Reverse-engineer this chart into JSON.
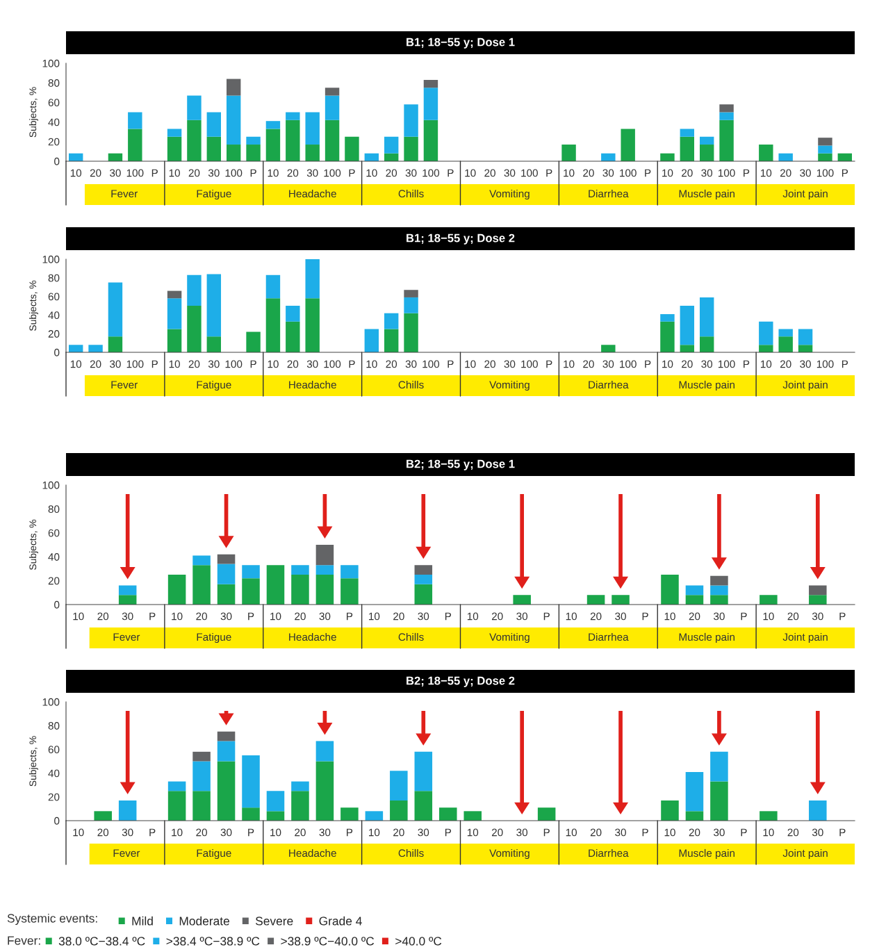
{
  "chart_data": [
    {
      "type": "bar",
      "stacked": true,
      "title": "B1; 18−55 y; Dose 1",
      "ylabel": "Subjects, %",
      "ylim": [
        0,
        100
      ],
      "yticks": [
        0,
        20,
        40,
        60,
        80,
        100
      ],
      "grid": false,
      "categories": [
        "10",
        "20",
        "30",
        "100",
        "P",
        "10",
        "20",
        "30",
        "100",
        "P",
        "10",
        "20",
        "30",
        "100",
        "P",
        "10",
        "20",
        "30",
        "100",
        "P",
        "10",
        "20",
        "30",
        "100",
        "P",
        "10",
        "20",
        "30",
        "100",
        "P",
        "10",
        "20",
        "30",
        "100",
        "P",
        "10",
        "20",
        "30",
        "100",
        "P"
      ],
      "annotations": [
        "Fever",
        "Fatigue",
        "Headache",
        "Chills",
        "Vomiting",
        "Diarrhea",
        "Muscle pain",
        "Joint pain"
      ],
      "series": [
        {
          "color": "#1aa64a",
          "values": [
            0,
            0,
            8,
            33,
            0,
            25,
            42,
            25,
            17,
            17,
            33,
            42,
            17,
            42,
            25,
            0,
            8,
            25,
            42,
            0,
            0,
            0,
            0,
            0,
            0,
            17,
            0,
            0,
            33,
            0,
            8,
            25,
            17,
            42,
            0,
            17,
            0,
            0,
            8,
            8
          ]
        },
        {
          "color": "#1eaee8",
          "values": [
            8,
            0,
            0,
            17,
            0,
            8,
            25,
            25,
            50,
            8,
            8,
            8,
            33,
            25,
            0,
            8,
            17,
            33,
            33,
            0,
            0,
            0,
            0,
            0,
            0,
            0,
            0,
            8,
            0,
            0,
            0,
            8,
            8,
            8,
            0,
            0,
            8,
            0,
            8,
            0
          ]
        },
        {
          "color": "#636466",
          "values": [
            0,
            0,
            0,
            0,
            0,
            0,
            0,
            0,
            17,
            0,
            0,
            0,
            0,
            8,
            0,
            0,
            0,
            0,
            8,
            0,
            0,
            0,
            0,
            0,
            0,
            0,
            0,
            0,
            0,
            0,
            0,
            0,
            0,
            8,
            0,
            0,
            0,
            0,
            8,
            0
          ]
        },
        {
          "color": "#e0201b",
          "values": [
            0,
            0,
            0,
            0,
            0,
            0,
            0,
            0,
            0,
            0,
            0,
            0,
            0,
            0,
            0,
            0,
            0,
            0,
            0,
            0,
            0,
            0,
            0,
            0,
            0,
            0,
            0,
            0,
            0,
            0,
            0,
            0,
            0,
            0,
            0,
            0,
            0,
            0,
            0,
            0
          ]
        }
      ]
    },
    {
      "type": "bar",
      "stacked": true,
      "title": "B1; 18−55 y; Dose 2",
      "ylabel": "Subjects, %",
      "ylim": [
        0,
        100
      ],
      "yticks": [
        0,
        20,
        40,
        60,
        80,
        100
      ],
      "grid": false,
      "categories": [
        "10",
        "20",
        "30",
        "100",
        "P",
        "10",
        "20",
        "30",
        "100",
        "P",
        "10",
        "20",
        "30",
        "100",
        "P",
        "10",
        "20",
        "30",
        "100",
        "P",
        "10",
        "20",
        "30",
        "100",
        "P",
        "10",
        "20",
        "30",
        "100",
        "P",
        "10",
        "20",
        "30",
        "100",
        "P",
        "10",
        "20",
        "30",
        "100",
        "P"
      ],
      "annotations": [
        "Fever",
        "Fatigue",
        "Headache",
        "Chills",
        "Vomiting",
        "Diarrhea",
        "Muscle pain",
        "Joint pain"
      ],
      "series": [
        {
          "color": "#1aa64a",
          "values": [
            0,
            0,
            17,
            0,
            0,
            25,
            50,
            17,
            0,
            22,
            58,
            33,
            58,
            0,
            0,
            0,
            25,
            42,
            0,
            0,
            0,
            0,
            0,
            0,
            0,
            0,
            0,
            8,
            0,
            0,
            33,
            8,
            17,
            0,
            0,
            8,
            17,
            8,
            0,
            0
          ]
        },
        {
          "color": "#1eaee8",
          "values": [
            8,
            8,
            58,
            0,
            0,
            33,
            33,
            67,
            0,
            0,
            25,
            17,
            42,
            0,
            0,
            25,
            17,
            17,
            0,
            0,
            0,
            0,
            0,
            0,
            0,
            0,
            0,
            0,
            0,
            0,
            8,
            42,
            42,
            0,
            0,
            25,
            8,
            17,
            0,
            0
          ]
        },
        {
          "color": "#636466",
          "values": [
            0,
            0,
            0,
            0,
            0,
            8,
            0,
            0,
            0,
            0,
            0,
            0,
            0,
            0,
            0,
            0,
            0,
            8,
            0,
            0,
            0,
            0,
            0,
            0,
            0,
            0,
            0,
            0,
            0,
            0,
            0,
            0,
            0,
            0,
            0,
            0,
            0,
            0,
            0,
            0
          ]
        },
        {
          "color": "#e0201b",
          "values": [
            0,
            0,
            0,
            0,
            0,
            0,
            0,
            0,
            0,
            0,
            0,
            0,
            0,
            0,
            0,
            0,
            0,
            0,
            0,
            0,
            0,
            0,
            0,
            0,
            0,
            0,
            0,
            0,
            0,
            0,
            0,
            0,
            0,
            0,
            0,
            0,
            0,
            0,
            0,
            0
          ]
        }
      ]
    },
    {
      "type": "bar",
      "stacked": true,
      "title": "B2; 18−55 y; Dose 1",
      "ylabel": "Subjects, %",
      "ylim": [
        0,
        100
      ],
      "yticks": [
        0,
        20,
        40,
        60,
        80,
        100
      ],
      "grid": false,
      "categories": [
        "10",
        "20",
        "30",
        "P",
        "10",
        "20",
        "30",
        "P",
        "10",
        "20",
        "30",
        "P",
        "10",
        "20",
        "30",
        "P",
        "10",
        "20",
        "30",
        "P",
        "10",
        "20",
        "30",
        "P",
        "10",
        "20",
        "30",
        "P",
        "10",
        "20",
        "30",
        "P"
      ],
      "annotations": [
        "Fever",
        "Fatigue",
        "Headache",
        "Chills",
        "Vomiting",
        "Diarrhea",
        "Muscle pain",
        "Joint pain"
      ],
      "series": [
        {
          "color": "#1aa64a",
          "values": [
            0,
            0,
            8,
            0,
            25,
            33,
            17,
            22,
            33,
            25,
            25,
            22,
            0,
            0,
            17,
            0,
            0,
            0,
            8,
            0,
            0,
            8,
            8,
            0,
            25,
            8,
            8,
            0,
            8,
            0,
            8,
            0
          ]
        },
        {
          "color": "#1eaee8",
          "values": [
            0,
            0,
            8,
            0,
            0,
            8,
            17,
            11,
            0,
            8,
            8,
            11,
            0,
            0,
            8,
            0,
            0,
            0,
            0,
            0,
            0,
            0,
            0,
            0,
            0,
            8,
            8,
            0,
            0,
            0,
            0,
            0
          ]
        },
        {
          "color": "#636466",
          "values": [
            0,
            0,
            0,
            0,
            0,
            0,
            8,
            0,
            0,
            0,
            17,
            0,
            0,
            0,
            8,
            0,
            0,
            0,
            0,
            0,
            0,
            0,
            0,
            0,
            0,
            0,
            8,
            0,
            0,
            0,
            8,
            0
          ]
        },
        {
          "color": "#e0201b",
          "values": [
            0,
            0,
            0,
            0,
            0,
            0,
            0,
            0,
            0,
            0,
            0,
            0,
            0,
            0,
            0,
            0,
            0,
            0,
            0,
            0,
            0,
            0,
            0,
            0,
            0,
            0,
            0,
            0,
            0,
            0,
            0,
            0
          ]
        }
      ]
    },
    {
      "type": "bar",
      "stacked": true,
      "title": "B2; 18−55 y; Dose 2",
      "ylabel": "Subjects, %",
      "ylim": [
        0,
        100
      ],
      "yticks": [
        0,
        20,
        40,
        60,
        80,
        100
      ],
      "grid": false,
      "categories": [
        "10",
        "20",
        "30",
        "P",
        "10",
        "20",
        "30",
        "P",
        "10",
        "20",
        "30",
        "P",
        "10",
        "20",
        "30",
        "P",
        "10",
        "20",
        "30",
        "P",
        "10",
        "20",
        "30",
        "P",
        "10",
        "20",
        "30",
        "P",
        "10",
        "20",
        "30",
        "P"
      ],
      "annotations": [
        "Fever",
        "Fatigue",
        "Headache",
        "Chills",
        "Vomiting",
        "Diarrhea",
        "Muscle pain",
        "Joint pain",
        "Fever:",
        "38.0 ºC−38.4 ºC",
        ">38.4 ºC−38.9 ºC",
        ">38.9 ºC−40.0 ºC",
        ">40.0 ºC"
      ],
      "legend": "bottom",
      "legend_title": "Systemic events:",
      "series": [
        {
          "name": "Mild",
          "color": "#1aa64a",
          "values": [
            0,
            8,
            0,
            0,
            25,
            25,
            50,
            11,
            8,
            25,
            50,
            11,
            0,
            17,
            25,
            11,
            8,
            0,
            0,
            11,
            0,
            0,
            0,
            0,
            17,
            8,
            33,
            0,
            8,
            0,
            0,
            0
          ]
        },
        {
          "name": "Moderate",
          "color": "#1eaee8",
          "values": [
            0,
            0,
            17,
            0,
            8,
            25,
            17,
            44,
            17,
            8,
            17,
            0,
            8,
            25,
            33,
            0,
            0,
            0,
            0,
            0,
            0,
            0,
            0,
            0,
            0,
            33,
            25,
            0,
            0,
            0,
            17,
            0
          ]
        },
        {
          "name": "Severe",
          "color": "#636466",
          "values": [
            0,
            0,
            0,
            0,
            0,
            8,
            8,
            0,
            0,
            0,
            0,
            0,
            0,
            0,
            0,
            0,
            0,
            0,
            0,
            0,
            0,
            0,
            0,
            0,
            0,
            0,
            0,
            0,
            0,
            0,
            0,
            0
          ]
        },
        {
          "name": "Grade 4",
          "color": "#e0201b",
          "values": [
            0,
            0,
            0,
            0,
            0,
            0,
            0,
            0,
            0,
            0,
            0,
            0,
            0,
            0,
            0,
            0,
            0,
            0,
            0,
            0,
            0,
            0,
            0,
            0,
            0,
            0,
            0,
            0,
            0,
            0,
            0,
            0
          ]
        }
      ]
    }
  ]
}
